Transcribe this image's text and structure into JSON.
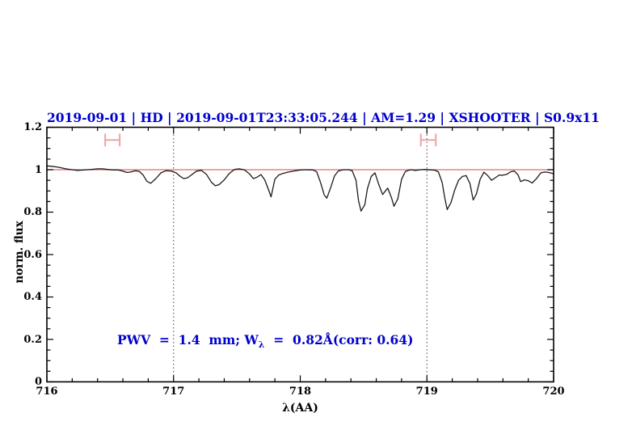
{
  "title": {
    "text": "2019-09-01 | HD | 2019-09-01T23:33:05.244 | AM=1.29 | XSHOOTER | S0.9x11"
  },
  "annotation": {
    "prefix": "PWV  =  1.4  mm; W",
    "subscript": "λ",
    "suffix": "  =  0.82Å(corr: 0.64)"
  },
  "colors": {
    "accent_blue": "#0000cd",
    "continuum_red": "#e46a6a",
    "marker_pink": "#f2a2a2",
    "spectrum_black": "#1b1b1b",
    "axis_black": "#000000",
    "dotted_gray": "#404040"
  },
  "chart_data": {
    "type": "line",
    "title": "2019-09-01 | HD | 2019-09-01T23:33:05.244 | AM=1.29 | XSHOOTER | S0.9x11",
    "xlabel": "λ(AA)",
    "ylabel": "norm. flux",
    "xlim": [
      716,
      720
    ],
    "ylim": [
      0,
      1.2
    ],
    "x_major_ticks": [
      716,
      717,
      718,
      719,
      720
    ],
    "x_tick_labels": [
      "716",
      "717",
      "718",
      "719",
      "720"
    ],
    "x_minor_step": 0.2,
    "y_major_ticks": [
      0,
      0.2,
      0.4,
      0.6,
      0.8,
      1,
      1.2
    ],
    "y_tick_labels": [
      "0",
      "0.2",
      "0.4",
      "0.6",
      "0.8",
      "1",
      "1.2"
    ],
    "y_minor_step": 0.05,
    "grid": "off",
    "legend": "none",
    "dotted_lines_x": [
      717,
      719
    ],
    "continuum_level": 1.0,
    "markers": [
      {
        "x_min": 716.46,
        "x_max": 716.575,
        "y": 1.14,
        "cap_half_height": 0.03
      },
      {
        "x_min": 718.952,
        "x_max": 719.07,
        "y": 1.14,
        "cap_half_height": 0.03
      }
    ],
    "series": [
      {
        "name": "normalized telluric spectrum",
        "x": [
          716.0,
          716.04,
          716.08,
          716.12,
          716.16,
          716.2,
          716.24,
          716.28,
          716.32,
          716.36,
          716.4,
          716.44,
          716.48,
          716.52,
          716.56,
          716.6,
          716.63,
          716.66,
          716.7,
          716.73,
          716.76,
          716.79,
          716.82,
          716.86,
          716.9,
          716.94,
          716.98,
          717.02,
          717.05,
          717.08,
          717.11,
          717.14,
          717.18,
          717.22,
          717.26,
          717.3,
          717.33,
          717.36,
          717.4,
          717.44,
          717.48,
          717.52,
          717.56,
          717.6,
          717.63,
          717.66,
          717.69,
          717.72,
          717.75,
          717.77,
          717.8,
          717.83,
          717.86,
          717.9,
          717.95,
          718.0,
          718.05,
          718.1,
          718.13,
          718.16,
          718.19,
          718.21,
          718.24,
          718.27,
          718.3,
          718.34,
          718.38,
          718.41,
          718.44,
          718.46,
          718.48,
          718.51,
          718.53,
          718.56,
          718.59,
          718.62,
          718.65,
          718.69,
          718.72,
          718.74,
          718.77,
          718.8,
          718.83,
          718.87,
          718.91,
          718.95,
          718.99,
          719.03,
          719.06,
          719.09,
          719.12,
          719.14,
          719.16,
          719.19,
          719.22,
          719.25,
          719.28,
          719.31,
          719.34,
          719.365,
          719.39,
          719.42,
          719.45,
          719.48,
          719.51,
          719.54,
          719.57,
          719.6,
          719.63,
          719.66,
          719.69,
          719.72,
          719.74,
          719.77,
          719.8,
          719.83,
          719.86,
          719.9,
          719.93,
          719.96,
          720.0
        ],
        "y": [
          1.018,
          1.016,
          1.013,
          1.008,
          1.003,
          1.0,
          0.997,
          0.998,
          1.0,
          1.002,
          1.004,
          1.004,
          1.001,
          0.999,
          0.999,
          0.993,
          0.987,
          0.989,
          0.995,
          0.992,
          0.975,
          0.945,
          0.936,
          0.958,
          0.985,
          0.995,
          0.994,
          0.985,
          0.97,
          0.958,
          0.962,
          0.975,
          0.993,
          0.997,
          0.978,
          0.94,
          0.924,
          0.93,
          0.952,
          0.982,
          1.001,
          1.004,
          0.999,
          0.98,
          0.958,
          0.965,
          0.977,
          0.952,
          0.905,
          0.872,
          0.955,
          0.975,
          0.982,
          0.988,
          0.994,
          0.999,
          1.0,
          0.999,
          0.99,
          0.94,
          0.88,
          0.866,
          0.915,
          0.97,
          0.994,
          1.0,
          1.0,
          0.995,
          0.95,
          0.855,
          0.805,
          0.835,
          0.91,
          0.968,
          0.985,
          0.93,
          0.883,
          0.913,
          0.868,
          0.828,
          0.862,
          0.955,
          0.992,
          1.0,
          0.997,
          1.0,
          1.001,
          0.999,
          0.998,
          0.99,
          0.94,
          0.87,
          0.812,
          0.845,
          0.905,
          0.95,
          0.968,
          0.972,
          0.935,
          0.857,
          0.885,
          0.955,
          0.988,
          0.972,
          0.95,
          0.962,
          0.975,
          0.974,
          0.978,
          0.99,
          0.994,
          0.975,
          0.944,
          0.952,
          0.948,
          0.937,
          0.955,
          0.985,
          0.989,
          0.987,
          0.981
        ]
      }
    ]
  }
}
